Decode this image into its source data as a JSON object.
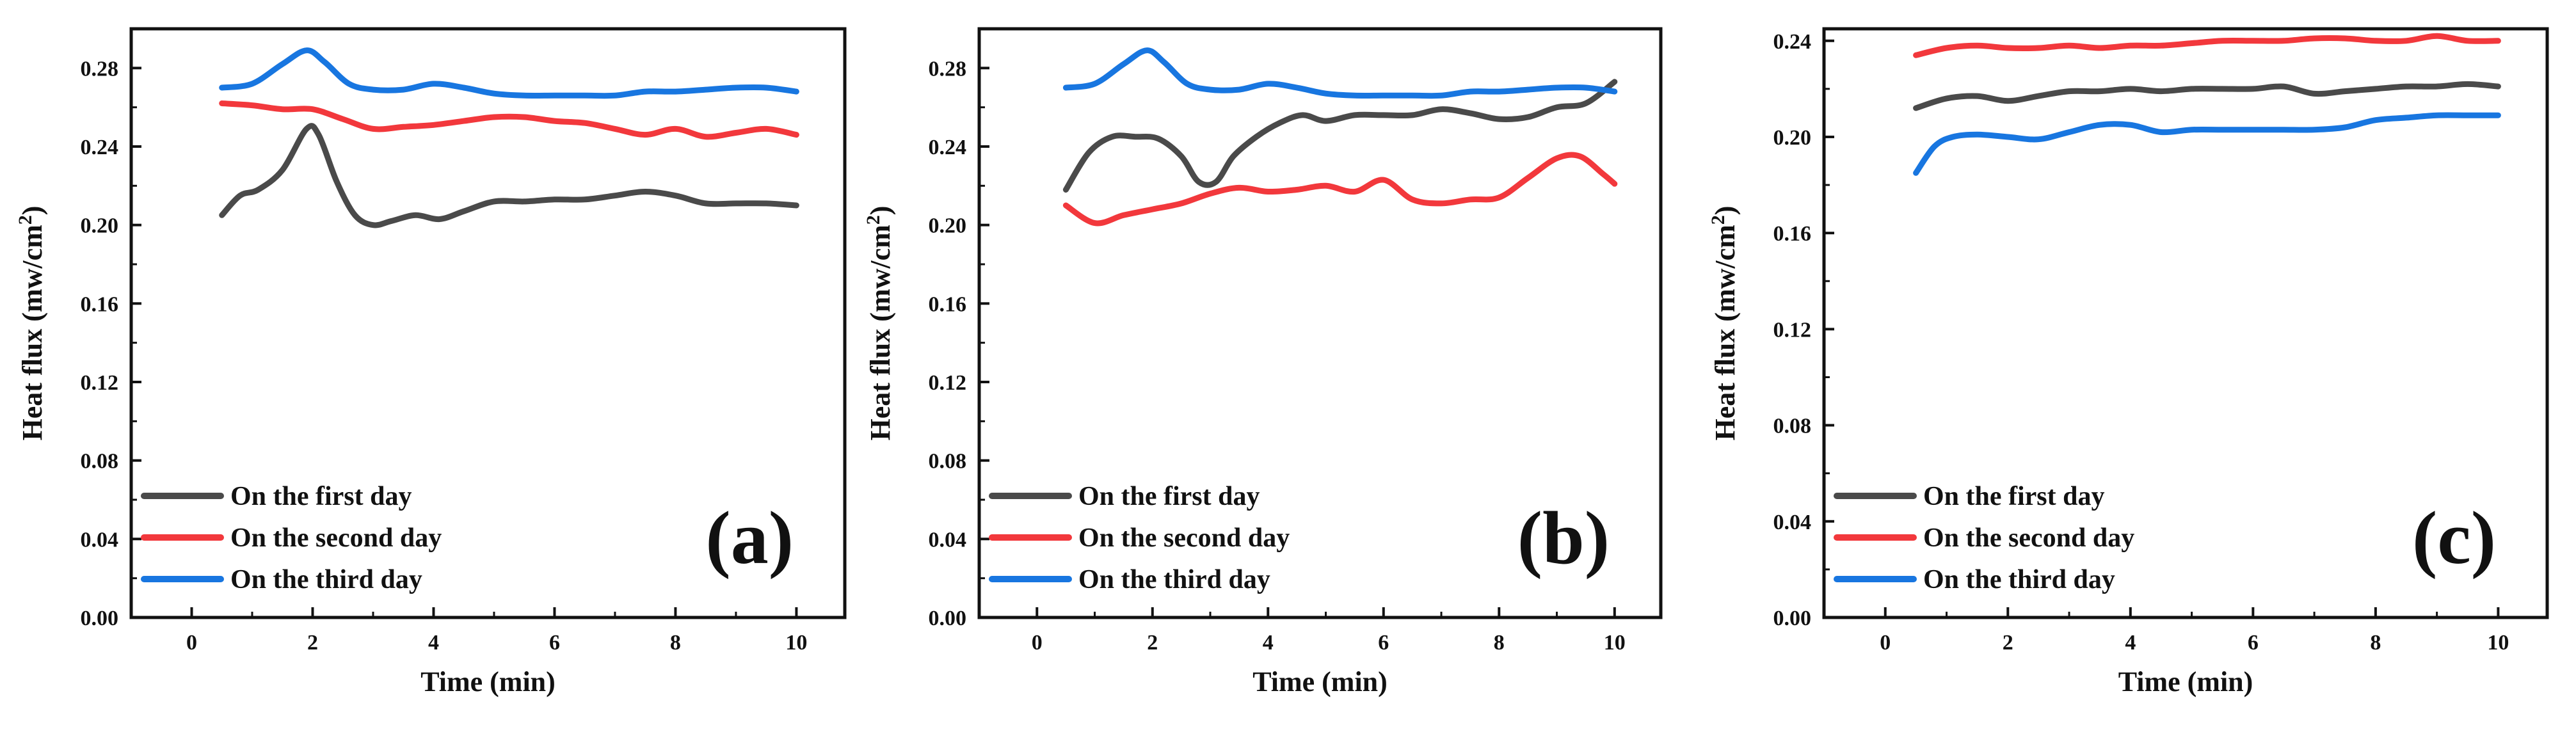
{
  "colors": {
    "first": "#4a4a4a",
    "second": "#f2383c",
    "third": "#1876e0",
    "axis": "#111111"
  },
  "chart_data": [
    {
      "type": "line",
      "panel_label": "(a)",
      "xlabel": "Time (min)",
      "ylabel": "Heat flux (mw/cm2)",
      "ylabel_main": "Heat flux (mw/cm",
      "ylabel_sup": "2",
      "ylabel_end": ")",
      "xlim": [
        -1,
        10.8
      ],
      "ylim": [
        0,
        0.3
      ],
      "xticks": [
        0,
        2,
        4,
        6,
        8,
        10
      ],
      "yticks": [
        0.0,
        0.04,
        0.08,
        0.12,
        0.16,
        0.2,
        0.24,
        0.28
      ],
      "ytick_labels": [
        "0.00",
        "0.04",
        "0.08",
        "0.12",
        "0.16",
        "0.20",
        "0.24",
        "0.28"
      ],
      "legend_position": "bottom-left",
      "series": [
        {
          "name": "On the first day",
          "color_key": "first",
          "x": [
            0.5,
            0.8,
            1.1,
            1.5,
            1.9,
            2.1,
            2.4,
            2.7,
            3.0,
            3.3,
            3.7,
            4.1,
            4.5,
            5.0,
            5.5,
            6.0,
            6.5,
            7.0,
            7.5,
            8.0,
            8.5,
            9.0,
            9.5,
            10.0
          ],
          "y": [
            0.205,
            0.215,
            0.218,
            0.228,
            0.249,
            0.246,
            0.222,
            0.205,
            0.2,
            0.202,
            0.205,
            0.203,
            0.207,
            0.212,
            0.212,
            0.213,
            0.213,
            0.215,
            0.217,
            0.215,
            0.211,
            0.211,
            0.211,
            0.21
          ]
        },
        {
          "name": "On the second day",
          "color_key": "second",
          "x": [
            0.5,
            1.0,
            1.5,
            2.0,
            2.5,
            3.0,
            3.5,
            4.0,
            4.5,
            5.0,
            5.5,
            6.0,
            6.5,
            7.0,
            7.5,
            8.0,
            8.5,
            9.0,
            9.5,
            10.0
          ],
          "y": [
            0.262,
            0.261,
            0.259,
            0.259,
            0.254,
            0.249,
            0.25,
            0.251,
            0.253,
            0.255,
            0.255,
            0.253,
            0.252,
            0.249,
            0.246,
            0.249,
            0.245,
            0.247,
            0.249,
            0.246
          ]
        },
        {
          "name": "On the third day",
          "color_key": "third",
          "x": [
            0.5,
            1.0,
            1.5,
            1.9,
            2.2,
            2.6,
            3.0,
            3.5,
            4.0,
            4.5,
            5.0,
            5.5,
            6.0,
            6.5,
            7.0,
            7.5,
            8.0,
            8.5,
            9.0,
            9.5,
            10.0
          ],
          "y": [
            0.27,
            0.272,
            0.282,
            0.289,
            0.283,
            0.272,
            0.269,
            0.269,
            0.272,
            0.27,
            0.267,
            0.266,
            0.266,
            0.266,
            0.266,
            0.268,
            0.268,
            0.269,
            0.27,
            0.27,
            0.268
          ]
        }
      ]
    },
    {
      "type": "line",
      "panel_label": "(b)",
      "xlabel": "Time (min)",
      "ylabel": "Heat flux (mw/cm2)",
      "ylabel_main": "Heat flux (mw/cm",
      "ylabel_sup": "2",
      "ylabel_end": ")",
      "xlim": [
        -1,
        10.8
      ],
      "ylim": [
        0,
        0.3
      ],
      "xticks": [
        0,
        2,
        4,
        6,
        8,
        10
      ],
      "yticks": [
        0.0,
        0.04,
        0.08,
        0.12,
        0.16,
        0.2,
        0.24,
        0.28
      ],
      "ytick_labels": [
        "0.00",
        "0.04",
        "0.08",
        "0.12",
        "0.16",
        "0.20",
        "0.24",
        "0.28"
      ],
      "legend_position": "bottom-left",
      "series": [
        {
          "name": "On the first day",
          "color_key": "first",
          "x": [
            0.5,
            0.9,
            1.3,
            1.7,
            2.1,
            2.5,
            2.8,
            3.1,
            3.4,
            3.8,
            4.2,
            4.6,
            5.0,
            5.5,
            6.0,
            6.5,
            7.0,
            7.5,
            8.0,
            8.5,
            9.0,
            9.5,
            10.0
          ],
          "y": [
            0.218,
            0.237,
            0.245,
            0.245,
            0.244,
            0.235,
            0.222,
            0.222,
            0.235,
            0.245,
            0.252,
            0.256,
            0.253,
            0.256,
            0.256,
            0.256,
            0.259,
            0.257,
            0.254,
            0.255,
            0.26,
            0.262,
            0.273
          ]
        },
        {
          "name": "On the second day",
          "color_key": "second",
          "x": [
            0.5,
            1.0,
            1.5,
            2.0,
            2.5,
            3.0,
            3.5,
            4.0,
            4.5,
            5.0,
            5.5,
            6.0,
            6.5,
            7.0,
            7.5,
            8.0,
            8.5,
            9.0,
            9.4,
            9.8,
            10.0
          ],
          "y": [
            0.21,
            0.201,
            0.205,
            0.208,
            0.211,
            0.216,
            0.219,
            0.217,
            0.218,
            0.22,
            0.217,
            0.223,
            0.213,
            0.211,
            0.213,
            0.214,
            0.224,
            0.234,
            0.235,
            0.226,
            0.221
          ]
        },
        {
          "name": "On the third day",
          "color_key": "third",
          "x": [
            0.5,
            1.0,
            1.5,
            1.9,
            2.2,
            2.6,
            3.0,
            3.5,
            4.0,
            4.5,
            5.0,
            5.5,
            6.0,
            6.5,
            7.0,
            7.5,
            8.0,
            8.5,
            9.0,
            9.5,
            10.0
          ],
          "y": [
            0.27,
            0.272,
            0.282,
            0.289,
            0.283,
            0.272,
            0.269,
            0.269,
            0.272,
            0.27,
            0.267,
            0.266,
            0.266,
            0.266,
            0.266,
            0.268,
            0.268,
            0.269,
            0.27,
            0.27,
            0.268
          ]
        }
      ]
    },
    {
      "type": "line",
      "panel_label": "(c)",
      "xlabel": "Time (min)",
      "ylabel": "Heat flux (mw/cm2)",
      "ylabel_main": "Heat flux (mw/cm",
      "ylabel_sup": "2",
      "ylabel_end": ")",
      "xlim": [
        -1,
        10.8
      ],
      "ylim": [
        0,
        0.245
      ],
      "xticks": [
        0,
        2,
        4,
        6,
        8,
        10
      ],
      "yticks": [
        0.0,
        0.04,
        0.08,
        0.12,
        0.16,
        0.2,
        0.24
      ],
      "ytick_labels": [
        "0.00",
        "0.04",
        "0.08",
        "0.12",
        "0.16",
        "0.20",
        "0.24"
      ],
      "legend_position": "bottom-left",
      "series": [
        {
          "name": "On the first day",
          "color_key": "first",
          "x": [
            0.5,
            1.0,
            1.5,
            2.0,
            2.5,
            3.0,
            3.5,
            4.0,
            4.5,
            5.0,
            5.5,
            6.0,
            6.5,
            7.0,
            7.5,
            8.0,
            8.5,
            9.0,
            9.5,
            10.0
          ],
          "y": [
            0.212,
            0.216,
            0.217,
            0.215,
            0.217,
            0.219,
            0.219,
            0.22,
            0.219,
            0.22,
            0.22,
            0.22,
            0.221,
            0.218,
            0.219,
            0.22,
            0.221,
            0.221,
            0.222,
            0.221
          ]
        },
        {
          "name": "On the second day",
          "color_key": "second",
          "x": [
            0.5,
            1.0,
            1.5,
            2.0,
            2.5,
            3.0,
            3.5,
            4.0,
            4.5,
            5.0,
            5.5,
            6.0,
            6.5,
            7.0,
            7.5,
            8.0,
            8.5,
            9.0,
            9.5,
            10.0
          ],
          "y": [
            0.234,
            0.237,
            0.238,
            0.237,
            0.237,
            0.238,
            0.237,
            0.238,
            0.238,
            0.239,
            0.24,
            0.24,
            0.24,
            0.241,
            0.241,
            0.24,
            0.24,
            0.242,
            0.24,
            0.24
          ]
        },
        {
          "name": "On the third day",
          "color_key": "third",
          "x": [
            0.5,
            0.8,
            1.1,
            1.5,
            2.0,
            2.5,
            3.0,
            3.5,
            4.0,
            4.5,
            5.0,
            5.5,
            6.0,
            6.5,
            7.0,
            7.5,
            8.0,
            8.5,
            9.0,
            9.5,
            10.0
          ],
          "y": [
            0.185,
            0.196,
            0.2,
            0.201,
            0.2,
            0.199,
            0.202,
            0.205,
            0.205,
            0.202,
            0.203,
            0.203,
            0.203,
            0.203,
            0.203,
            0.204,
            0.207,
            0.208,
            0.209,
            0.209,
            0.209
          ]
        }
      ]
    }
  ]
}
